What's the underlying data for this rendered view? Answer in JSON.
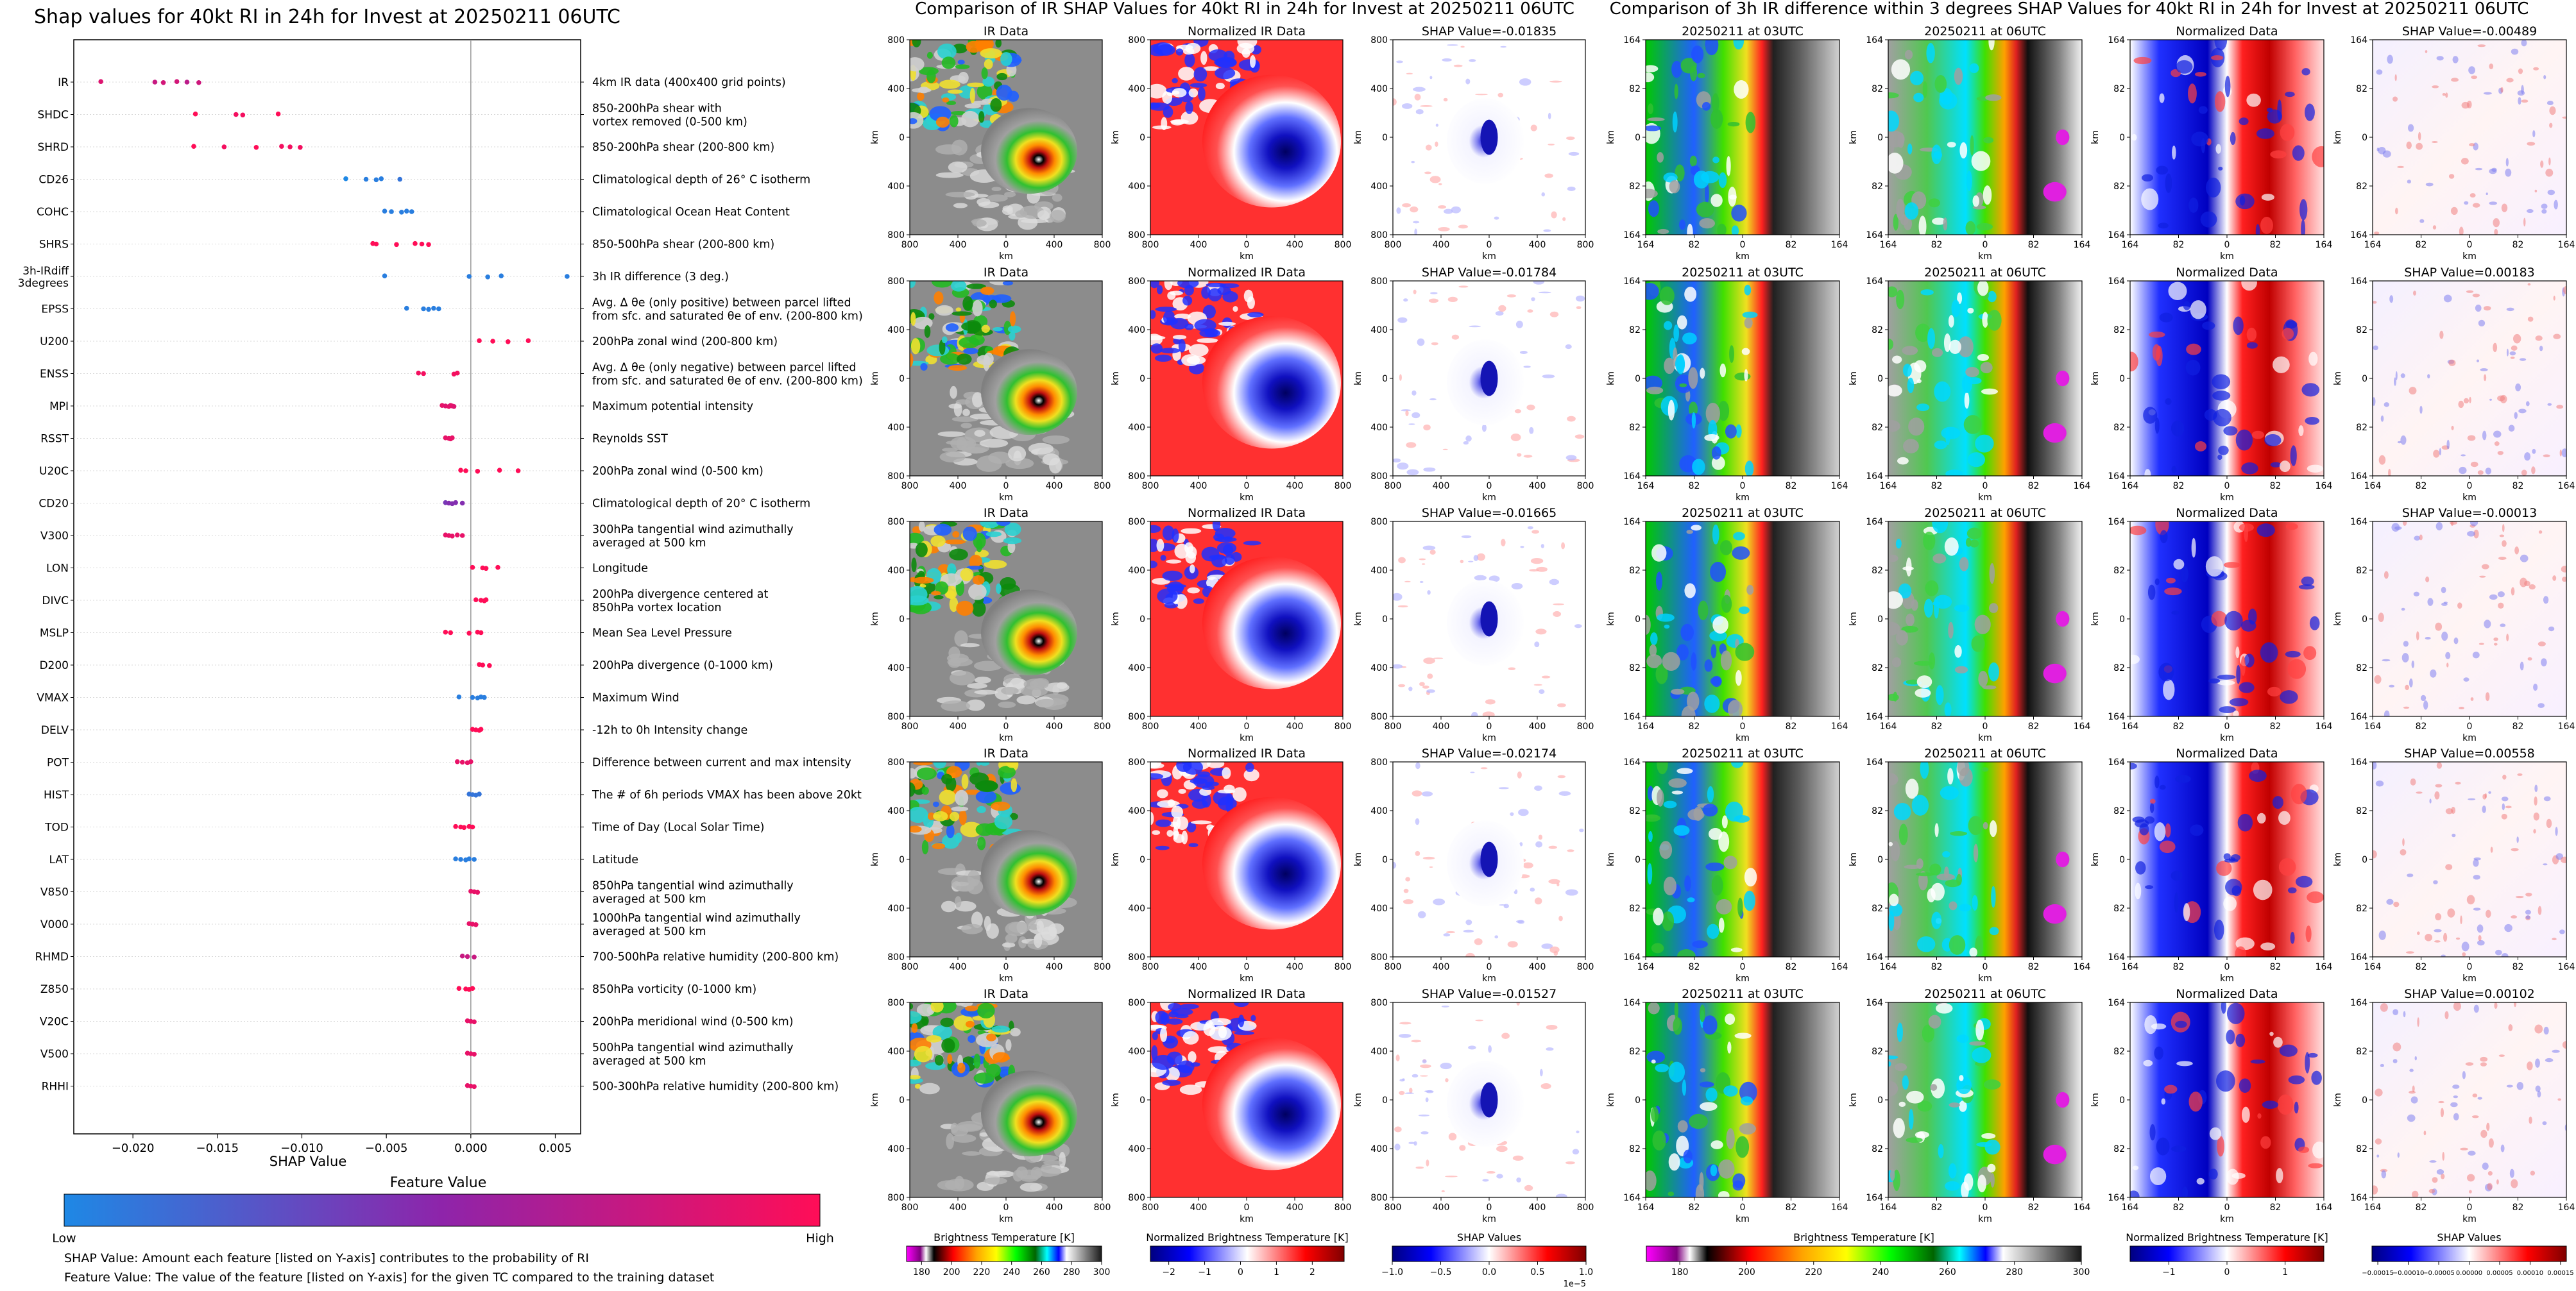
{
  "left_panel": {
    "title": "Shap values for 40kt RI in 24h for Invest at 20250211 06UTC",
    "xlabel": "SHAP Value",
    "colorbar_title": "Feature Value",
    "colorbar_low": "Low",
    "colorbar_high": "High",
    "colors": {
      "low": "#1e88e5",
      "mid": "#8e24aa",
      "high": "#ff0d57"
    },
    "footnote1": "SHAP Value: Amount each feature [listed on Y-axis] contributes to the probability of RI",
    "footnote2": "Feature Value: The value of the feature [listed on Y-axis] for the given TC compared to the training dataset"
  },
  "middle_panel": {
    "title": "Comparison of IR SHAP Values for 40kt RI in 24h for Invest at 20250211 06UTC",
    "col_titles": [
      "IR Data",
      "Normalized IR Data",
      "SHAP Value=-0.01835"
    ],
    "row_shap_titles": [
      "SHAP Value=-0.01835",
      "SHAP Value=-0.01784",
      "SHAP Value=-0.01665",
      "SHAP Value=-0.02174",
      "SHAP Value=-0.01527"
    ],
    "axis_label": "km",
    "tick_labels": [
      "800",
      "400",
      "0",
      "400",
      "800"
    ],
    "colorbars": [
      {
        "label": "Brightness Temperature [K]",
        "ticks": [
          "180",
          "200",
          "220",
          "240",
          "260",
          "280",
          "300"
        ]
      },
      {
        "label": "Normalized Brightness Temperature [K]",
        "ticks": [
          "−2",
          "−1",
          "0",
          "1",
          "2"
        ]
      },
      {
        "label": "SHAP Values",
        "ticks": [
          "−1.0",
          "−0.5",
          "0.0",
          "0.5",
          "1.0"
        ],
        "exponent": "1e−5"
      }
    ]
  },
  "right_panel": {
    "title": "Comparison of 3h IR difference within 3 degrees SHAP Values for 40kt RI in 24h for Invest at 20250211 06UTC",
    "col_titles": [
      "20250211 at 03UTC",
      "20250211 at 06UTC",
      "Normalized Data"
    ],
    "row_shap_titles": [
      "SHAP Value=-0.00489",
      "SHAP Value=0.00183",
      "SHAP Value=-0.00013",
      "SHAP Value=0.00558",
      "SHAP Value=0.00102"
    ],
    "axis_label": "km",
    "tick_labels": [
      "164",
      "82",
      "0",
      "82",
      "164"
    ],
    "colorbars": [
      {
        "label": "Brightness Temperature [K]",
        "ticks": [
          "180",
          "200",
          "220",
          "240",
          "260",
          "280",
          "300"
        ]
      },
      {
        "label": "Normalized Brightness Temperature [K]",
        "ticks": [
          "−1",
          "0",
          "1"
        ]
      },
      {
        "label": "SHAP Values",
        "ticks": [
          "−0.00015",
          "−0.00010",
          "−0.00005",
          "0.00000",
          "0.00005",
          "0.00010",
          "0.00015"
        ]
      }
    ]
  },
  "chart_data": [
    {
      "type": "scatter",
      "title": "Shap values for 40kt RI in 24h for Invest at 20250211 06UTC",
      "xlabel": "SHAP Value",
      "xlim": [
        -0.0235,
        0.0065
      ],
      "xticks": [
        -0.02,
        -0.015,
        -0.01,
        -0.005,
        0.0,
        0.005
      ],
      "xtick_labels": [
        "−0.020",
        "−0.015",
        "−0.010",
        "−0.005",
        "0.000",
        "0.005"
      ],
      "features": [
        {
          "name": "IR",
          "desc": "4km IR data (400x400 grid points)",
          "points": [
            [
              -0.0219,
              0.85
            ],
            [
              -0.0187,
              0.75
            ],
            [
              -0.0182,
              0.8
            ],
            [
              -0.0174,
              0.8
            ],
            [
              -0.0168,
              0.7
            ],
            [
              -0.0161,
              0.78
            ]
          ]
        },
        {
          "name": "SHDC",
          "desc": "850-200hPa shear with\nvortex removed (0-500 km)",
          "points": [
            [
              -0.0163,
              1.0
            ],
            [
              -0.0139,
              0.95
            ],
            [
              -0.0135,
              0.95
            ],
            [
              -0.0114,
              1.0
            ]
          ]
        },
        {
          "name": "SHRD",
          "desc": "850-200hPa shear (200-800 km)",
          "points": [
            [
              -0.0164,
              1.0
            ],
            [
              -0.0146,
              0.95
            ],
            [
              -0.0127,
              1.0
            ],
            [
              -0.0112,
              0.95
            ],
            [
              -0.0107,
              0.95
            ],
            [
              -0.0101,
              0.95
            ]
          ]
        },
        {
          "name": "CD26",
          "desc": "Climatological depth of 26° C isotherm",
          "points": [
            [
              -0.0074,
              0.0
            ],
            [
              -0.0062,
              0.05
            ],
            [
              -0.0056,
              0.05
            ],
            [
              -0.0053,
              0.05
            ],
            [
              -0.0042,
              0.1
            ]
          ]
        },
        {
          "name": "COHC",
          "desc": "Climatological Ocean Heat Content",
          "points": [
            [
              -0.0051,
              0.05
            ],
            [
              -0.0047,
              0.05
            ],
            [
              -0.0041,
              0.05
            ],
            [
              -0.0038,
              0.05
            ],
            [
              -0.0035,
              0.05
            ]
          ]
        },
        {
          "name": "SHRS",
          "desc": "850-500hPa shear (200-800 km)",
          "points": [
            [
              -0.0058,
              1.0
            ],
            [
              -0.0056,
              1.0
            ],
            [
              -0.0044,
              1.0
            ],
            [
              -0.0033,
              1.0
            ],
            [
              -0.0029,
              1.0
            ],
            [
              -0.0025,
              1.0
            ]
          ]
        },
        {
          "name": "3h-IRdiff\n3degrees",
          "desc": "3h IR difference (3 deg.)",
          "points": [
            [
              -0.0051,
              0.05
            ],
            [
              -0.0001,
              0.05
            ],
            [
              0.001,
              0.05
            ],
            [
              0.0018,
              0.05
            ],
            [
              0.0057,
              0.05
            ]
          ]
        },
        {
          "name": "EPSS",
          "desc": "Avg. Δ θe (only positive) between parcel lifted\nfrom sfc. and saturated θe of env. (200-800 km)",
          "points": [
            [
              -0.0038,
              0.05
            ],
            [
              -0.0028,
              0.05
            ],
            [
              -0.0025,
              0.05
            ],
            [
              -0.0022,
              0.05
            ],
            [
              -0.0019,
              0.05
            ]
          ]
        },
        {
          "name": "U200",
          "desc": "200hPa zonal wind (200-800 km)",
          "points": [
            [
              0.0005,
              1.0
            ],
            [
              0.0013,
              1.0
            ],
            [
              0.0022,
              1.0
            ],
            [
              0.0034,
              1.0
            ]
          ]
        },
        {
          "name": "ENSS",
          "desc": "Avg. Δ θe (only negative) between parcel lifted\nfrom sfc. and saturated θe of env. (200-800 km)",
          "points": [
            [
              -0.0031,
              0.95
            ],
            [
              -0.0028,
              0.95
            ],
            [
              -0.001,
              0.95
            ],
            [
              -0.0008,
              0.95
            ]
          ]
        },
        {
          "name": "MPI",
          "desc": "Maximum potential intensity",
          "points": [
            [
              -0.0017,
              0.9
            ],
            [
              -0.0015,
              0.85
            ],
            [
              -0.0013,
              0.9
            ],
            [
              -0.0012,
              0.85
            ],
            [
              -0.0011,
              0.9
            ],
            [
              -0.001,
              0.85
            ]
          ]
        },
        {
          "name": "RSST",
          "desc": "Reynolds SST",
          "points": [
            [
              -0.0015,
              0.9
            ],
            [
              -0.0013,
              0.9
            ],
            [
              -0.0012,
              0.9
            ],
            [
              -0.0011,
              0.9
            ]
          ]
        },
        {
          "name": "U20C",
          "desc": "200hPa zonal wind (0-500 km)",
          "points": [
            [
              -0.0006,
              1.0
            ],
            [
              -0.0003,
              1.0
            ],
            [
              0.0004,
              1.0
            ],
            [
              0.0017,
              1.0
            ],
            [
              0.0028,
              1.0
            ]
          ]
        },
        {
          "name": "CD20",
          "desc": "Climatological depth of 20° C isotherm",
          "points": [
            [
              -0.0015,
              0.4
            ],
            [
              -0.0013,
              0.45
            ],
            [
              -0.0011,
              0.45
            ],
            [
              -0.0009,
              0.45
            ],
            [
              -0.0005,
              0.45
            ]
          ]
        },
        {
          "name": "V300",
          "desc": "300hPa tangential wind azimuthally\naveraged at 500 km",
          "points": [
            [
              -0.0015,
              0.9
            ],
            [
              -0.0013,
              0.9
            ],
            [
              -0.0011,
              0.9
            ],
            [
              -0.0008,
              0.9
            ],
            [
              -0.0005,
              0.9
            ]
          ]
        },
        {
          "name": "LON",
          "desc": "Longitude",
          "points": [
            [
              0.0001,
              1.0
            ],
            [
              0.0007,
              1.0
            ],
            [
              0.0009,
              1.0
            ],
            [
              0.0016,
              1.0
            ]
          ]
        },
        {
          "name": "DIVC",
          "desc": "200hPa divergence centered at\n850hPa vortex location",
          "points": [
            [
              0.0003,
              1.0
            ],
            [
              0.0006,
              1.0
            ],
            [
              0.0008,
              1.0
            ],
            [
              0.0009,
              1.0
            ]
          ]
        },
        {
          "name": "MSLP",
          "desc": "Mean Sea Level Pressure",
          "points": [
            [
              -0.0015,
              1.0
            ],
            [
              -0.0012,
              1.0
            ],
            [
              -0.0001,
              1.0
            ],
            [
              0.0004,
              1.0
            ],
            [
              0.0006,
              1.0
            ]
          ]
        },
        {
          "name": "D200",
          "desc": "200hPa divergence (0-1000 km)",
          "points": [
            [
              0.0005,
              1.0
            ],
            [
              0.0007,
              1.0
            ],
            [
              0.0011,
              1.0
            ]
          ]
        },
        {
          "name": "VMAX",
          "desc": "Maximum Wind",
          "points": [
            [
              -0.0007,
              0.05
            ],
            [
              0.0001,
              0.05
            ],
            [
              0.0004,
              0.05
            ],
            [
              0.0006,
              0.05
            ],
            [
              0.0008,
              0.05
            ]
          ]
        },
        {
          "name": "DELV",
          "desc": "-12h to 0h Intensity change",
          "points": [
            [
              0.0001,
              1.0
            ],
            [
              0.0003,
              1.0
            ],
            [
              0.0005,
              1.0
            ],
            [
              0.0006,
              1.0
            ]
          ]
        },
        {
          "name": "POT",
          "desc": "Difference between current and max intensity",
          "points": [
            [
              -0.0008,
              0.9
            ],
            [
              -0.0005,
              0.9
            ],
            [
              -0.0002,
              0.9
            ],
            [
              0.0,
              0.9
            ]
          ]
        },
        {
          "name": "HIST",
          "desc": "The # of 6h periods VMAX has been above 20kt",
          "points": [
            [
              -0.0001,
              0.1
            ],
            [
              0.0001,
              0.1
            ],
            [
              0.0003,
              0.1
            ],
            [
              0.0005,
              0.1
            ]
          ]
        },
        {
          "name": "TOD",
          "desc": "Time of Day (Local Solar Time)",
          "points": [
            [
              -0.0009,
              1.0
            ],
            [
              -0.0006,
              1.0
            ],
            [
              -0.0004,
              1.0
            ],
            [
              -0.0001,
              1.0
            ],
            [
              0.0001,
              1.0
            ]
          ]
        },
        {
          "name": "LAT",
          "desc": "Latitude",
          "points": [
            [
              -0.0009,
              0.05
            ],
            [
              -0.0006,
              0.05
            ],
            [
              -0.0003,
              0.05
            ],
            [
              -0.0001,
              0.05
            ],
            [
              0.0002,
              0.05
            ]
          ]
        },
        {
          "name": "V850",
          "desc": "850hPa tangential wind azimuthally\naveraged at 500 km",
          "points": [
            [
              0.0,
              0.9
            ],
            [
              0.0002,
              0.9
            ],
            [
              0.0004,
              0.9
            ]
          ]
        },
        {
          "name": "V000",
          "desc": "1000hPa tangential wind azimuthally\naveraged at 500 km",
          "points": [
            [
              -0.0001,
              0.9
            ],
            [
              0.0001,
              0.9
            ],
            [
              0.0003,
              0.9
            ]
          ]
        },
        {
          "name": "RHMD",
          "desc": "700-500hPa relative humidity (200-800 km)",
          "points": [
            [
              -0.0005,
              0.75
            ],
            [
              -0.0002,
              0.75
            ],
            [
              0.0002,
              0.75
            ]
          ]
        },
        {
          "name": "Z850",
          "desc": "850hPa vorticity (0-1000 km)",
          "points": [
            [
              -0.0007,
              1.0
            ],
            [
              -0.0003,
              1.0
            ],
            [
              -0.0001,
              1.0
            ],
            [
              0.0001,
              1.0
            ]
          ]
        },
        {
          "name": "V20C",
          "desc": "200hPa meridional wind (0-500 km)",
          "points": [
            [
              -0.0002,
              0.9
            ],
            [
              0.0,
              0.9
            ],
            [
              0.0002,
              0.9
            ]
          ]
        },
        {
          "name": "V500",
          "desc": "500hPa tangential wind azimuthally\naveraged at 500 km",
          "points": [
            [
              -0.0002,
              0.9
            ],
            [
              0.0,
              0.9
            ],
            [
              0.0002,
              0.9
            ]
          ]
        },
        {
          "name": "RHHI",
          "desc": "500-300hPa relative humidity (200-800 km)",
          "points": [
            [
              -0.0002,
              0.9
            ],
            [
              0.0,
              0.9
            ],
            [
              0.0002,
              0.9
            ]
          ]
        }
      ]
    },
    {
      "type": "heatmap",
      "title": "Comparison of IR SHAP Values for 40kt RI in 24h for Invest at 20250211 06UTC",
      "rows": 5,
      "columns": [
        "IR Data",
        "Normalized IR Data",
        "SHAP Value"
      ],
      "shap_values": [
        -0.01835,
        -0.01784,
        -0.01665,
        -0.02174,
        -0.01527
      ],
      "xlabel": "km",
      "ylabel": "km",
      "xlim": [
        -800,
        800
      ],
      "ylim": [
        -800,
        800
      ]
    },
    {
      "type": "heatmap",
      "title": "Comparison of 3h IR difference within 3 degrees SHAP Values for 40kt RI in 24h for Invest at 20250211 06UTC",
      "rows": 5,
      "columns": [
        "20250211 at 03UTC",
        "20250211 at 06UTC",
        "Normalized Data",
        "SHAP Value"
      ],
      "shap_values": [
        -0.00489,
        0.00183,
        -0.00013,
        0.00558,
        0.00102
      ],
      "xlabel": "km",
      "ylabel": "km",
      "xlim": [
        -164,
        164
      ],
      "ylim": [
        -164,
        164
      ]
    }
  ]
}
